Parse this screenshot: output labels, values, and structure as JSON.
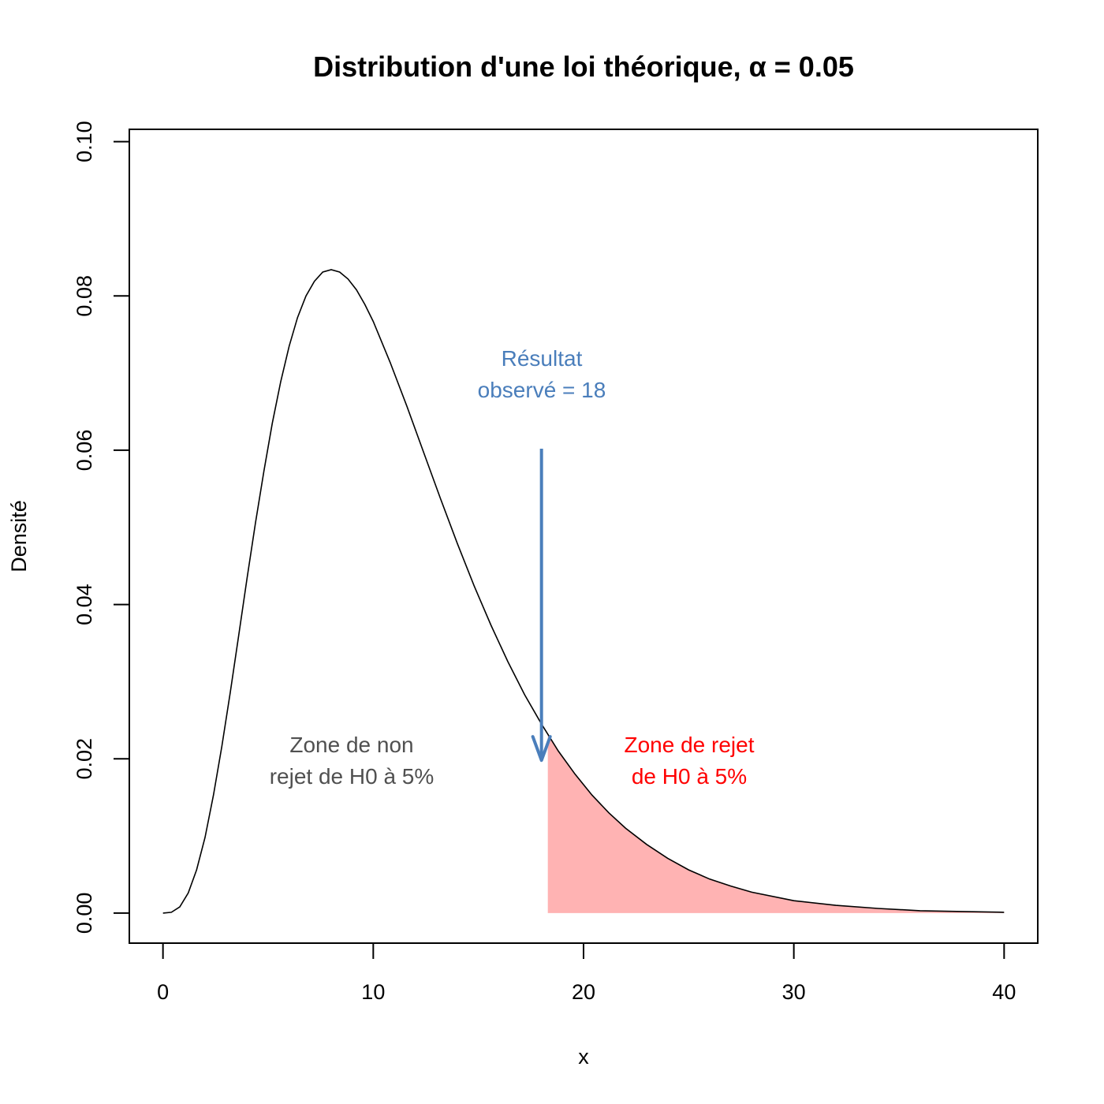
{
  "chart_data": {
    "type": "area",
    "title": "Distribution d'une loi théorique, α = 0.05",
    "xlabel": "x",
    "ylabel": "Densité",
    "xlim": [
      -1.6,
      41.6
    ],
    "ylim": [
      -0.0039,
      0.1016
    ],
    "xticks": [
      "0",
      "10",
      "20",
      "30",
      "40"
    ],
    "yticks": [
      "0.00",
      "0.02",
      "0.04",
      "0.06",
      "0.08",
      "0.10"
    ],
    "grid": false,
    "series": [
      {
        "x": [
          0,
          0.4,
          0.8,
          1.2,
          1.6,
          2,
          2.4,
          2.8,
          3.2,
          3.6,
          4,
          4.4,
          4.8,
          5.2,
          5.6,
          6,
          6.4,
          6.8,
          7.2,
          7.6,
          8,
          8.4,
          8.8,
          9.2,
          9.6,
          10,
          10.8,
          11.6,
          12.4,
          13.2,
          14,
          14.8,
          15.6,
          16.4,
          17.2,
          18,
          18.8,
          19.6,
          20.4,
          21.2,
          22,
          23,
          24,
          25,
          26,
          27,
          28,
          30,
          32,
          34,
          36,
          38,
          40
        ],
        "y": [
          0,
          0.0001,
          0.0008,
          0.0026,
          0.0056,
          0.0098,
          0.0153,
          0.0216,
          0.0286,
          0.036,
          0.0434,
          0.0506,
          0.0573,
          0.0635,
          0.0689,
          0.0735,
          0.0772,
          0.08,
          0.0819,
          0.0831,
          0.0834,
          0.0831,
          0.0822,
          0.0808,
          0.0789,
          0.0767,
          0.0714,
          0.0657,
          0.0597,
          0.0537,
          0.0479,
          0.0424,
          0.0373,
          0.0326,
          0.0283,
          0.0245,
          0.021,
          0.018,
          0.0153,
          0.013,
          0.011,
          0.0089,
          0.0071,
          0.0056,
          0.0044,
          0.0035,
          0.0027,
          0.0016,
          0.001,
          0.0006,
          0.0003,
          0.0002,
          0.0001
        ]
      }
    ],
    "critical_value": 18.3,
    "observed_value": 18,
    "arrow_y_range": [
      0.0602,
      0.0198
    ],
    "annotations": {
      "observed": [
        "Résultat",
        "observé = 18"
      ],
      "non_reject": [
        "Zone de non",
        "rejet de H0 à 5%"
      ],
      "reject": [
        "Zone de rejet",
        "de H0 à 5%"
      ]
    },
    "colors": {
      "curve": "#000000",
      "reject_fill": "#ffb3b3",
      "arrow": "#4a7ebb",
      "non_reject_text": "#505050",
      "reject_text": "#ff0000"
    }
  }
}
